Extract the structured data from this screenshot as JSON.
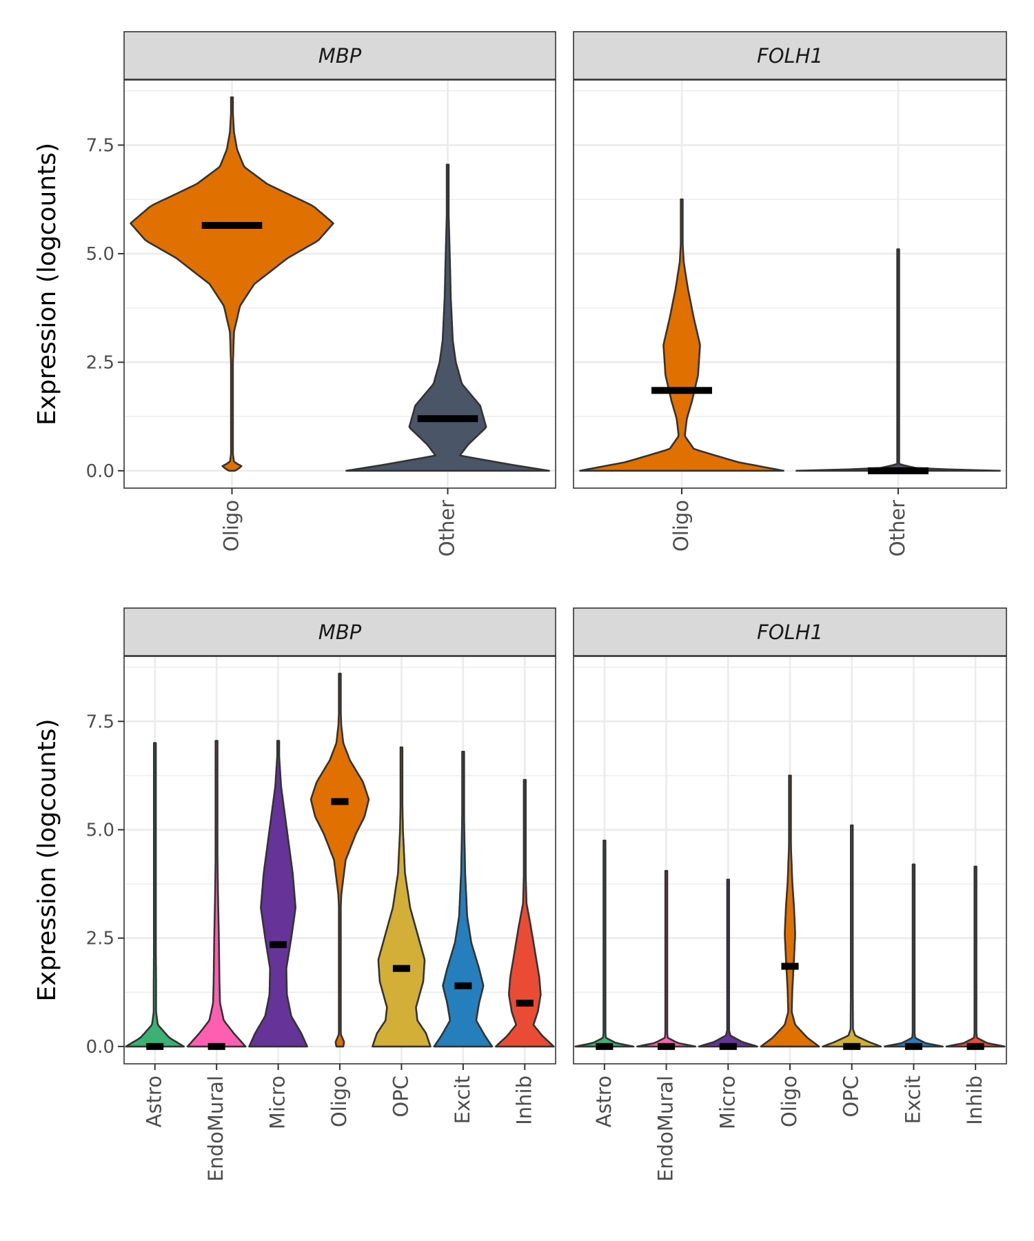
{
  "colors": {
    "Astro": "#3BB273",
    "EndoMural": "#FF5FB0",
    "Micro": "#663399",
    "Oligo": "#E07000",
    "OPC": "#D4AF37",
    "Excit": "#247FBC",
    "Inhib": "#E94B35",
    "Other": "#4A5568",
    "outline": "#333333",
    "median": "#000000",
    "strip_fill": "#D9D9D9",
    "grid": "#EBEBEB"
  },
  "chart_data": [
    {
      "type": "violin",
      "panel_title": "MBP",
      "xlabel": "",
      "ylabel": "Expression (logcounts)",
      "ylim": [
        -0.4,
        9.0
      ],
      "yticks": [
        "0.0",
        "2.5",
        "5.0",
        "7.5"
      ],
      "ytick_values": [
        0,
        2.5,
        5.0,
        7.5
      ],
      "grid": true,
      "categories": [
        "Oligo",
        "Other"
      ],
      "series": [
        {
          "category": "Oligo",
          "median": 5.65,
          "max": 8.6,
          "color_key": "Oligo",
          "profile": [
            [
              0,
              0.03
            ],
            [
              0.1,
              0.1
            ],
            [
              0.2,
              0.02
            ],
            [
              0.5,
              0.003
            ],
            [
              2.0,
              0.003
            ],
            [
              2.5,
              0.01
            ],
            [
              3.2,
              0.02
            ],
            [
              3.8,
              0.08
            ],
            [
              4.3,
              0.22
            ],
            [
              4.9,
              0.55
            ],
            [
              5.3,
              0.85
            ],
            [
              5.7,
              1.0
            ],
            [
              6.1,
              0.8
            ],
            [
              6.6,
              0.35
            ],
            [
              7.0,
              0.12
            ],
            [
              7.4,
              0.05
            ],
            [
              7.8,
              0.02
            ],
            [
              8.2,
              0.01
            ],
            [
              8.6,
              0.0
            ]
          ]
        },
        {
          "category": "Other",
          "median": 1.2,
          "max": 7.05,
          "color_key": "Other",
          "profile": [
            [
              0,
              1.0
            ],
            [
              0.15,
              0.6
            ],
            [
              0.35,
              0.12
            ],
            [
              0.6,
              0.2
            ],
            [
              1.0,
              0.38
            ],
            [
              1.5,
              0.32
            ],
            [
              2.0,
              0.14
            ],
            [
              2.5,
              0.08
            ],
            [
              3.0,
              0.05
            ],
            [
              4.0,
              0.03
            ],
            [
              5.0,
              0.02
            ],
            [
              6.0,
              0.008
            ],
            [
              7.05,
              0.0
            ]
          ]
        }
      ]
    },
    {
      "type": "violin",
      "panel_title": "FOLH1",
      "xlabel": "",
      "ylabel": "",
      "ylim": [
        -0.4,
        9.0
      ],
      "yticks": [
        "0.0",
        "2.5",
        "5.0",
        "7.5"
      ],
      "ytick_values": [
        0,
        2.5,
        5.0,
        7.5
      ],
      "grid": true,
      "categories": [
        "Oligo",
        "Other"
      ],
      "series": [
        {
          "category": "Oligo",
          "median": 1.85,
          "max": 6.25,
          "color_key": "Oligo",
          "profile": [
            [
              0,
              1.0
            ],
            [
              0.2,
              0.55
            ],
            [
              0.5,
              0.12
            ],
            [
              0.8,
              0.03
            ],
            [
              1.2,
              0.05
            ],
            [
              1.6,
              0.1
            ],
            [
              2.2,
              0.16
            ],
            [
              2.9,
              0.18
            ],
            [
              3.5,
              0.12
            ],
            [
              4.2,
              0.06
            ],
            [
              4.8,
              0.02
            ],
            [
              5.4,
              0.005
            ],
            [
              6.25,
              0.0
            ]
          ]
        },
        {
          "category": "Other",
          "median": 0.0,
          "max": 5.1,
          "color_key": "Other",
          "profile": [
            [
              0,
              1.0
            ],
            [
              0.05,
              0.2
            ],
            [
              0.15,
              0.01
            ],
            [
              0.3,
              0.005
            ],
            [
              5.1,
              0.0
            ]
          ]
        }
      ]
    },
    {
      "type": "violin",
      "panel_title": "MBP",
      "xlabel": "",
      "ylabel": "Expression (logcounts)",
      "ylim": [
        -0.4,
        9.0
      ],
      "yticks": [
        "0.0",
        "2.5",
        "5.0",
        "7.5"
      ],
      "ytick_values": [
        0,
        2.5,
        5.0,
        7.5
      ],
      "grid": true,
      "categories": [
        "Astro",
        "EndoMural",
        "Micro",
        "Oligo",
        "OPC",
        "Excit",
        "Inhib"
      ],
      "series": [
        {
          "category": "Astro",
          "median": 0.0,
          "max": 7.0,
          "color_key": "Astro",
          "profile": [
            [
              0,
              1.0
            ],
            [
              0.2,
              0.5
            ],
            [
              0.5,
              0.1
            ],
            [
              0.8,
              0.04
            ],
            [
              1.5,
              0.04
            ],
            [
              2.5,
              0.03
            ],
            [
              4,
              0.02
            ],
            [
              5.5,
              0.01
            ],
            [
              7.0,
              0.0
            ]
          ]
        },
        {
          "category": "EndoMural",
          "median": 0.0,
          "max": 7.05,
          "color_key": "EndoMural",
          "profile": [
            [
              0,
              1.0
            ],
            [
              0.3,
              0.6
            ],
            [
              0.6,
              0.25
            ],
            [
              1.0,
              0.12
            ],
            [
              1.5,
              0.1
            ],
            [
              2.5,
              0.08
            ],
            [
              3.5,
              0.05
            ],
            [
              4.5,
              0.03
            ],
            [
              6.0,
              0.01
            ],
            [
              7.05,
              0.0
            ]
          ]
        },
        {
          "category": "Micro",
          "median": 2.35,
          "max": 7.05,
          "color_key": "Micro",
          "profile": [
            [
              0,
              1.0
            ],
            [
              0.3,
              0.8
            ],
            [
              0.7,
              0.45
            ],
            [
              1.2,
              0.3
            ],
            [
              1.8,
              0.28
            ],
            [
              2.5,
              0.45
            ],
            [
              3.2,
              0.6
            ],
            [
              4.0,
              0.5
            ],
            [
              5.0,
              0.3
            ],
            [
              6.0,
              0.1
            ],
            [
              7.05,
              0.0
            ]
          ]
        },
        {
          "category": "Oligo",
          "median": 5.65,
          "max": 8.6,
          "color_key": "Oligo",
          "profile": [
            [
              0,
              0.12
            ],
            [
              0.1,
              0.15
            ],
            [
              0.3,
              0.02
            ],
            [
              1.0,
              0.02
            ],
            [
              3.0,
              0.02
            ],
            [
              3.5,
              0.05
            ],
            [
              4.3,
              0.2
            ],
            [
              4.9,
              0.55
            ],
            [
              5.3,
              0.85
            ],
            [
              5.7,
              1.0
            ],
            [
              6.1,
              0.8
            ],
            [
              6.6,
              0.35
            ],
            [
              7.0,
              0.12
            ],
            [
              7.4,
              0.05
            ],
            [
              7.9,
              0.02
            ],
            [
              8.6,
              0.0
            ]
          ]
        },
        {
          "category": "OPC",
          "median": 1.8,
          "max": 6.9,
          "color_key": "OPC",
          "profile": [
            [
              0,
              1.0
            ],
            [
              0.3,
              0.85
            ],
            [
              0.6,
              0.55
            ],
            [
              0.9,
              0.5
            ],
            [
              1.5,
              0.75
            ],
            [
              2.0,
              0.8
            ],
            [
              2.6,
              0.55
            ],
            [
              3.2,
              0.3
            ],
            [
              4.0,
              0.12
            ],
            [
              5.0,
              0.05
            ],
            [
              6.0,
              0.02
            ],
            [
              6.9,
              0.0
            ]
          ]
        },
        {
          "category": "Excit",
          "median": 1.4,
          "max": 6.8,
          "color_key": "Excit",
          "profile": [
            [
              0,
              1.0
            ],
            [
              0.25,
              0.75
            ],
            [
              0.6,
              0.45
            ],
            [
              1.0,
              0.55
            ],
            [
              1.4,
              0.7
            ],
            [
              1.8,
              0.55
            ],
            [
              2.4,
              0.28
            ],
            [
              3.0,
              0.14
            ],
            [
              4.0,
              0.07
            ],
            [
              5.0,
              0.04
            ],
            [
              6.0,
              0.02
            ],
            [
              6.8,
              0.0
            ]
          ]
        },
        {
          "category": "Inhib",
          "median": 1.0,
          "max": 6.15,
          "color_key": "Inhib",
          "profile": [
            [
              0,
              1.0
            ],
            [
              0.25,
              0.6
            ],
            [
              0.5,
              0.3
            ],
            [
              0.8,
              0.45
            ],
            [
              1.2,
              0.55
            ],
            [
              1.6,
              0.5
            ],
            [
              2.2,
              0.35
            ],
            [
              2.8,
              0.2
            ],
            [
              3.3,
              0.06
            ],
            [
              4.0,
              0.03
            ],
            [
              5.0,
              0.02
            ],
            [
              6.15,
              0.0
            ]
          ]
        }
      ]
    },
    {
      "type": "violin",
      "panel_title": "FOLH1",
      "xlabel": "",
      "ylabel": "",
      "ylim": [
        -0.4,
        9.0
      ],
      "yticks": [
        "0.0",
        "2.5",
        "5.0",
        "7.5"
      ],
      "ytick_values": [
        0,
        2.5,
        5.0,
        7.5
      ],
      "grid": true,
      "categories": [
        "Astro",
        "EndoMural",
        "Micro",
        "Oligo",
        "OPC",
        "Excit",
        "Inhib"
      ],
      "series": [
        {
          "category": "Astro",
          "median": 0.0,
          "max": 4.75,
          "color_key": "Astro",
          "profile": [
            [
              0,
              1.0
            ],
            [
              0.08,
              0.4
            ],
            [
              0.2,
              0.05
            ],
            [
              0.4,
              0.02
            ],
            [
              4.75,
              0.0
            ]
          ]
        },
        {
          "category": "EndoMural",
          "median": 0.0,
          "max": 4.05,
          "color_key": "EndoMural",
          "profile": [
            [
              0,
              1.0
            ],
            [
              0.08,
              0.4
            ],
            [
              0.2,
              0.05
            ],
            [
              0.4,
              0.02
            ],
            [
              4.05,
              0.0
            ]
          ]
        },
        {
          "category": "Micro",
          "median": 0.0,
          "max": 3.85,
          "color_key": "Micro",
          "profile": [
            [
              0,
              1.0
            ],
            [
              0.1,
              0.5
            ],
            [
              0.25,
              0.08
            ],
            [
              0.4,
              0.02
            ],
            [
              3.85,
              0.0
            ]
          ]
        },
        {
          "category": "Oligo",
          "median": 1.85,
          "max": 6.25,
          "color_key": "Oligo",
          "profile": [
            [
              0,
              1.0
            ],
            [
              0.2,
              0.6
            ],
            [
              0.5,
              0.18
            ],
            [
              0.8,
              0.06
            ],
            [
              1.3,
              0.08
            ],
            [
              1.9,
              0.13
            ],
            [
              2.6,
              0.18
            ],
            [
              3.2,
              0.14
            ],
            [
              3.8,
              0.08
            ],
            [
              4.5,
              0.04
            ],
            [
              5.2,
              0.015
            ],
            [
              6.25,
              0.0
            ]
          ]
        },
        {
          "category": "OPC",
          "median": 0.0,
          "max": 5.1,
          "color_key": "OPC",
          "profile": [
            [
              0,
              1.0
            ],
            [
              0.1,
              0.6
            ],
            [
              0.25,
              0.12
            ],
            [
              0.4,
              0.04
            ],
            [
              5.1,
              0.0
            ]
          ]
        },
        {
          "category": "Excit",
          "median": 0.0,
          "max": 4.2,
          "color_key": "Excit",
          "profile": [
            [
              0,
              1.0
            ],
            [
              0.08,
              0.4
            ],
            [
              0.2,
              0.05
            ],
            [
              0.4,
              0.02
            ],
            [
              4.2,
              0.0
            ]
          ]
        },
        {
          "category": "Inhib",
          "median": 0.0,
          "max": 4.15,
          "color_key": "Inhib",
          "profile": [
            [
              0,
              1.0
            ],
            [
              0.08,
              0.4
            ],
            [
              0.2,
              0.05
            ],
            [
              0.4,
              0.02
            ],
            [
              4.15,
              0.0
            ]
          ]
        }
      ]
    }
  ]
}
